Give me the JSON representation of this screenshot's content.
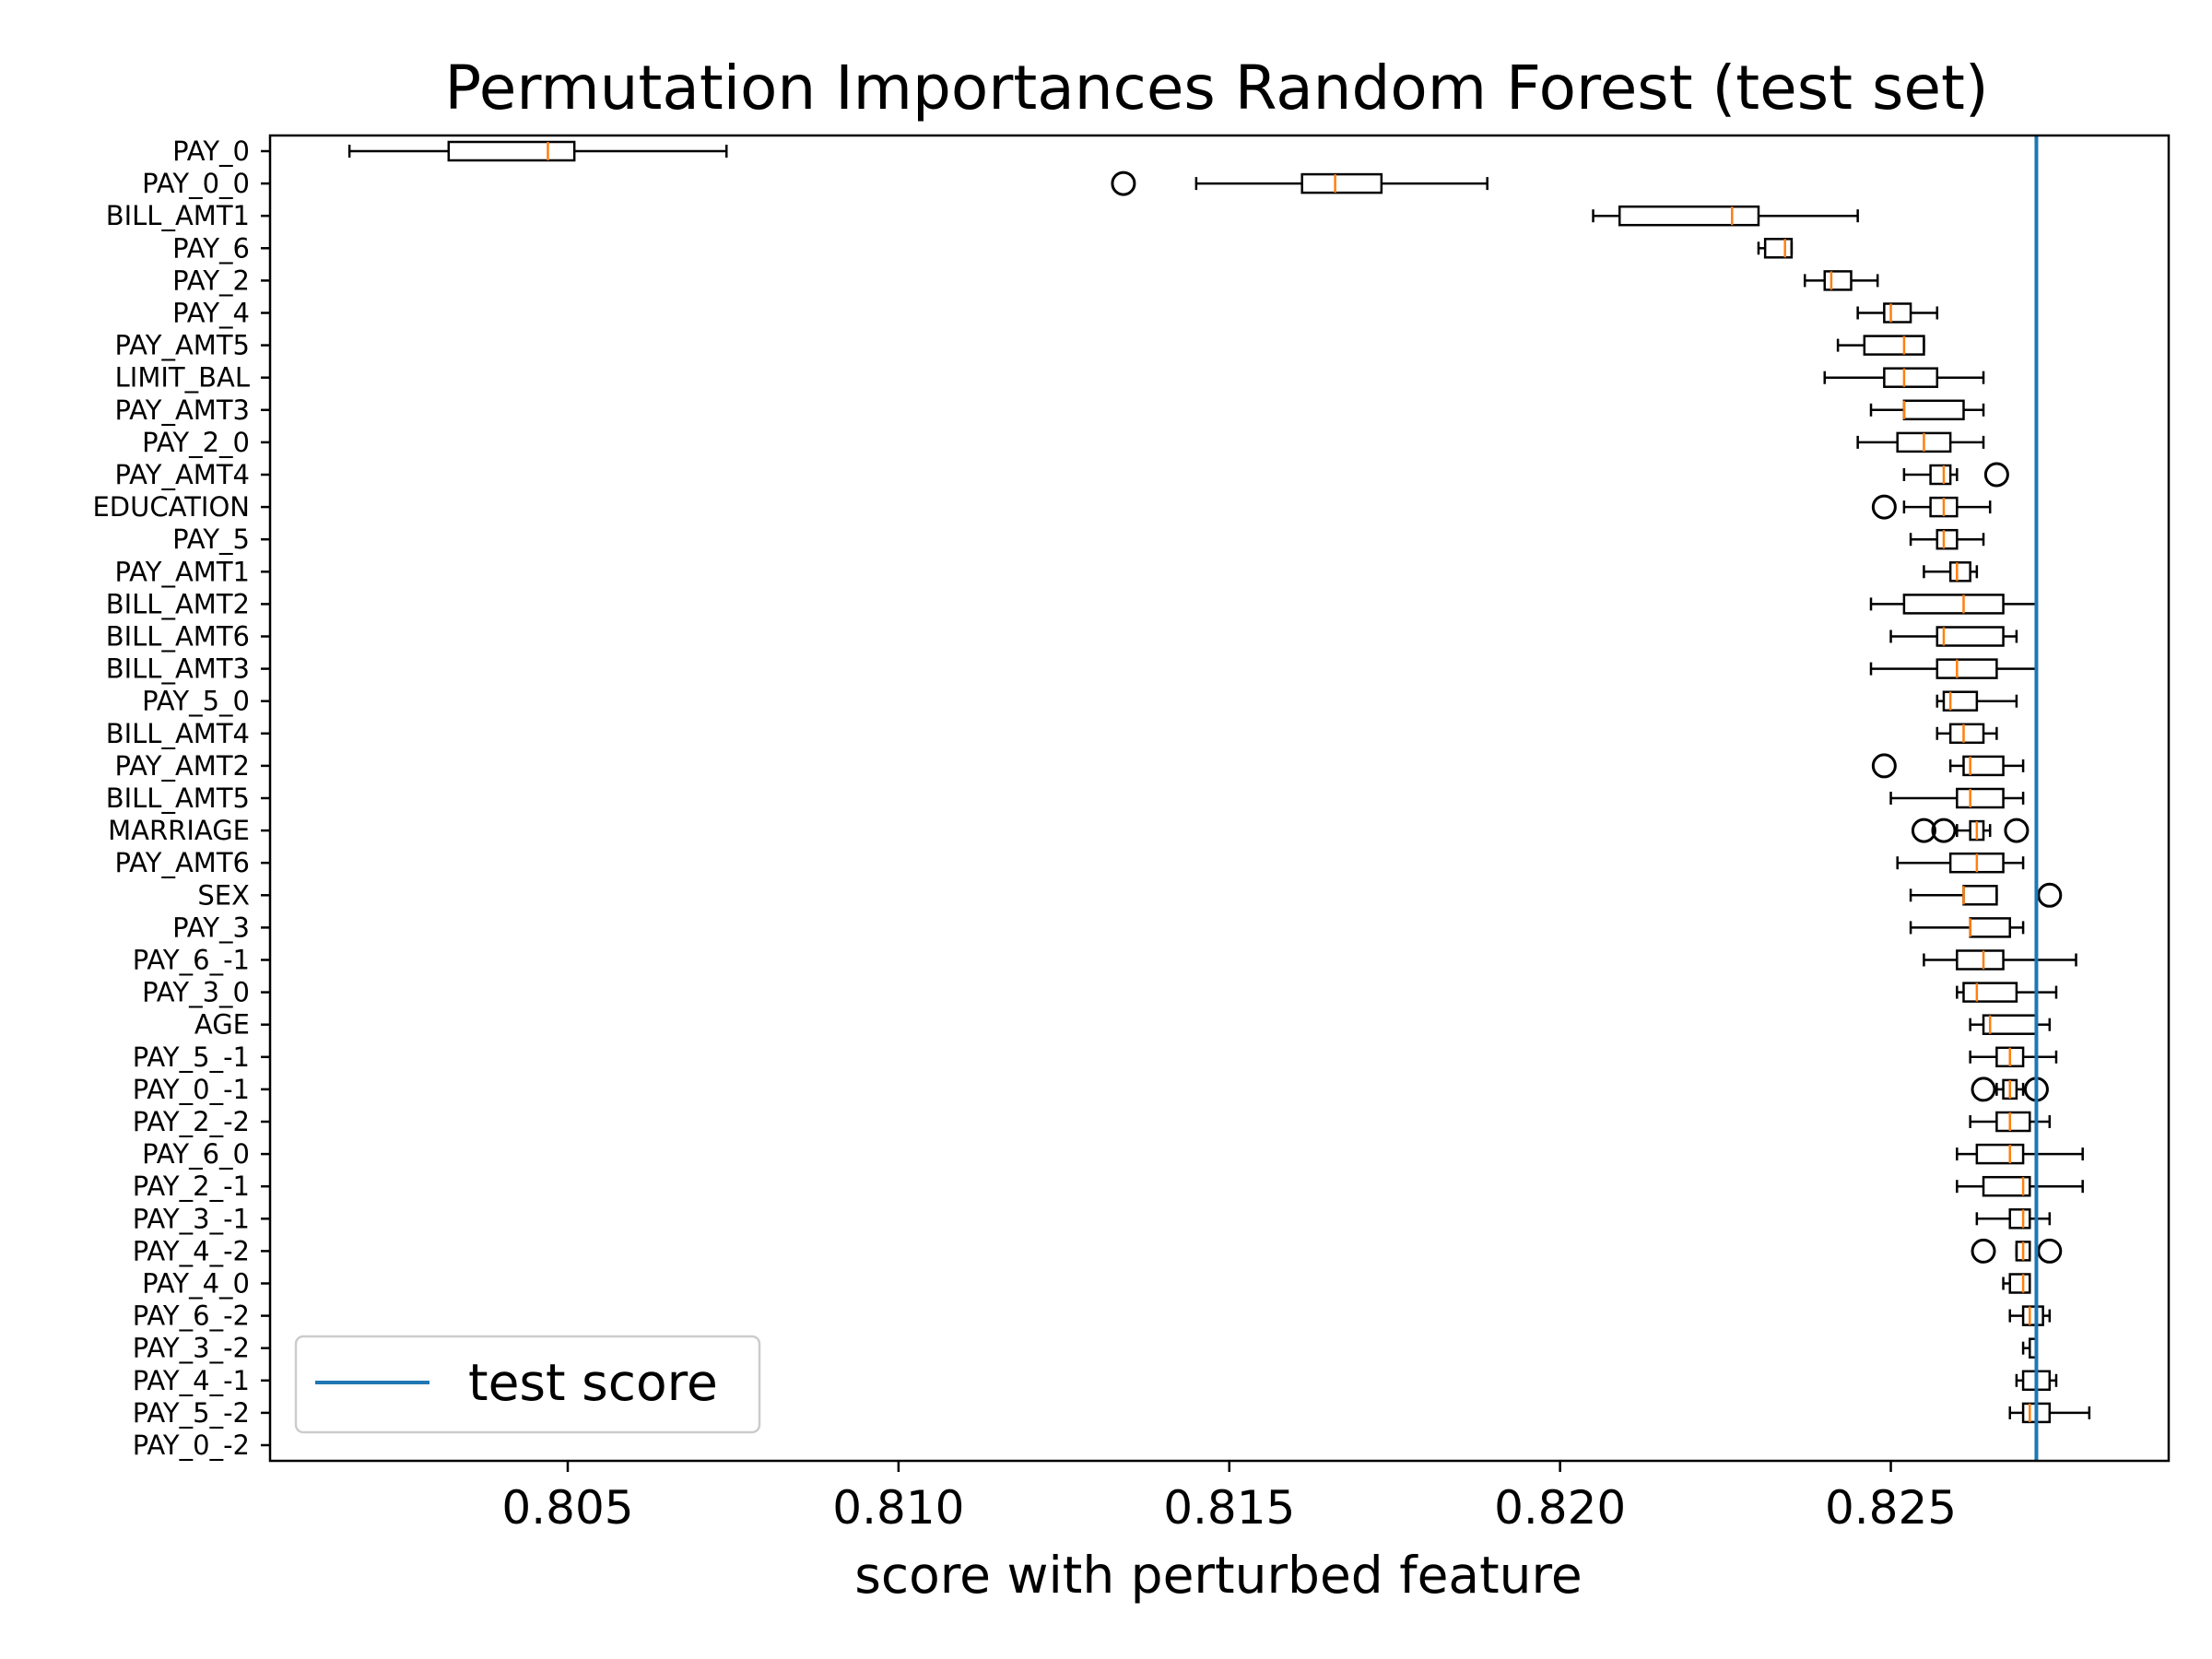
{
  "chart_data": {
    "type": "boxplot",
    "title": "Permutation Importances Random Forest (test set)",
    "xlabel": "score with perturbed feature",
    "ylabel": "",
    "xlim": [
      0.8005,
      0.8292
    ],
    "xticks": [
      "0.805",
      "0.810",
      "0.815",
      "0.820",
      "0.825"
    ],
    "grid": false,
    "legend": {
      "label": "test score",
      "location": "lower-left"
    },
    "reference_line": {
      "label": "test score",
      "value": 0.8272,
      "color": "#1f77b4"
    },
    "colors": {
      "box": "#000000",
      "median": "#ff7f0e",
      "line": "#1f77b4"
    },
    "features": [
      {
        "name": "PAY_0",
        "whislo": 0.8017,
        "q1": 0.8032,
        "med": 0.8047,
        "q3": 0.8051,
        "whishi": 0.8074,
        "fliers": []
      },
      {
        "name": "PAY_0_0",
        "whislo": 0.8145,
        "q1": 0.8161,
        "med": 0.8166,
        "q3": 0.8173,
        "whishi": 0.8189,
        "fliers": [
          0.8134
        ]
      },
      {
        "name": "BILL_AMT1",
        "whislo": 0.8205,
        "q1": 0.8209,
        "med": 0.8226,
        "q3": 0.823,
        "whishi": 0.8245,
        "fliers": []
      },
      {
        "name": "PAY_6",
        "whislo": 0.823,
        "q1": 0.8231,
        "med": 0.8234,
        "q3": 0.8235,
        "whishi": 0.8235,
        "fliers": []
      },
      {
        "name": "PAY_2",
        "whislo": 0.8237,
        "q1": 0.824,
        "med": 0.8241,
        "q3": 0.8244,
        "whishi": 0.8248,
        "fliers": []
      },
      {
        "name": "PAY_4",
        "whislo": 0.8245,
        "q1": 0.8249,
        "med": 0.825,
        "q3": 0.8253,
        "whishi": 0.8257,
        "fliers": []
      },
      {
        "name": "PAY_AMT5",
        "whislo": 0.8242,
        "q1": 0.8246,
        "med": 0.8252,
        "q3": 0.8255,
        "whishi": 0.8255,
        "fliers": []
      },
      {
        "name": "LIMIT_BAL",
        "whislo": 0.824,
        "q1": 0.8249,
        "med": 0.8252,
        "q3": 0.8257,
        "whishi": 0.8264,
        "fliers": []
      },
      {
        "name": "PAY_AMT3",
        "whislo": 0.8247,
        "q1": 0.8252,
        "med": 0.8252,
        "q3": 0.8261,
        "whishi": 0.8264,
        "fliers": []
      },
      {
        "name": "PAY_2_0",
        "whislo": 0.8245,
        "q1": 0.8251,
        "med": 0.8255,
        "q3": 0.8259,
        "whishi": 0.8264,
        "fliers": []
      },
      {
        "name": "PAY_AMT4",
        "whislo": 0.8252,
        "q1": 0.8256,
        "med": 0.8258,
        "q3": 0.8259,
        "whishi": 0.826,
        "fliers": [
          0.8266
        ]
      },
      {
        "name": "EDUCATION",
        "whislo": 0.8252,
        "q1": 0.8256,
        "med": 0.8258,
        "q3": 0.826,
        "whishi": 0.8265,
        "fliers": [
          0.8249
        ]
      },
      {
        "name": "PAY_5",
        "whislo": 0.8253,
        "q1": 0.8257,
        "med": 0.8258,
        "q3": 0.826,
        "whishi": 0.8264,
        "fliers": []
      },
      {
        "name": "PAY_AMT1",
        "whislo": 0.8255,
        "q1": 0.8259,
        "med": 0.826,
        "q3": 0.8262,
        "whishi": 0.8263,
        "fliers": []
      },
      {
        "name": "BILL_AMT2",
        "whislo": 0.8247,
        "q1": 0.8252,
        "med": 0.8261,
        "q3": 0.8267,
        "whishi": 0.8272,
        "fliers": []
      },
      {
        "name": "BILL_AMT6",
        "whislo": 0.825,
        "q1": 0.8257,
        "med": 0.8258,
        "q3": 0.8267,
        "whishi": 0.8269,
        "fliers": []
      },
      {
        "name": "BILL_AMT3",
        "whislo": 0.8247,
        "q1": 0.8257,
        "med": 0.826,
        "q3": 0.8266,
        "whishi": 0.8272,
        "fliers": []
      },
      {
        "name": "PAY_5_0",
        "whislo": 0.8257,
        "q1": 0.8258,
        "med": 0.8259,
        "q3": 0.8263,
        "whishi": 0.8269,
        "fliers": []
      },
      {
        "name": "BILL_AMT4",
        "whislo": 0.8257,
        "q1": 0.8259,
        "med": 0.8261,
        "q3": 0.8264,
        "whishi": 0.8266,
        "fliers": []
      },
      {
        "name": "PAY_AMT2",
        "whislo": 0.8259,
        "q1": 0.8261,
        "med": 0.8262,
        "q3": 0.8267,
        "whishi": 0.827,
        "fliers": [
          0.8249
        ]
      },
      {
        "name": "BILL_AMT5",
        "whislo": 0.825,
        "q1": 0.826,
        "med": 0.8262,
        "q3": 0.8267,
        "whishi": 0.827,
        "fliers": []
      },
      {
        "name": "MARRIAGE",
        "whislo": 0.826,
        "q1": 0.8262,
        "med": 0.8263,
        "q3": 0.8264,
        "whishi": 0.8265,
        "fliers": [
          0.8255,
          0.8258,
          0.8269
        ]
      },
      {
        "name": "PAY_AMT6",
        "whislo": 0.8251,
        "q1": 0.8259,
        "med": 0.8263,
        "q3": 0.8267,
        "whishi": 0.827,
        "fliers": []
      },
      {
        "name": "SEX",
        "whislo": 0.8253,
        "q1": 0.8261,
        "med": 0.8261,
        "q3": 0.8266,
        "whishi": 0.8266,
        "fliers": [
          0.8274
        ]
      },
      {
        "name": "PAY_3",
        "whislo": 0.8253,
        "q1": 0.8262,
        "med": 0.8262,
        "q3": 0.8268,
        "whishi": 0.827,
        "fliers": []
      },
      {
        "name": "PAY_6_-1",
        "whislo": 0.8255,
        "q1": 0.826,
        "med": 0.8264,
        "q3": 0.8267,
        "whishi": 0.8278,
        "fliers": []
      },
      {
        "name": "PAY_3_0",
        "whislo": 0.826,
        "q1": 0.8261,
        "med": 0.8263,
        "q3": 0.8269,
        "whishi": 0.8275,
        "fliers": []
      },
      {
        "name": "AGE",
        "whislo": 0.8262,
        "q1": 0.8264,
        "med": 0.8265,
        "q3": 0.8272,
        "whishi": 0.8274,
        "fliers": []
      },
      {
        "name": "PAY_5_-1",
        "whislo": 0.8262,
        "q1": 0.8266,
        "med": 0.8268,
        "q3": 0.827,
        "whishi": 0.8275,
        "fliers": []
      },
      {
        "name": "PAY_0_-1",
        "whislo": 0.8266,
        "q1": 0.8267,
        "med": 0.8268,
        "q3": 0.8269,
        "whishi": 0.827,
        "fliers": [
          0.8264,
          0.8272
        ]
      },
      {
        "name": "PAY_2_-2",
        "whislo": 0.8262,
        "q1": 0.8266,
        "med": 0.8268,
        "q3": 0.8271,
        "whishi": 0.8274,
        "fliers": []
      },
      {
        "name": "PAY_6_0",
        "whislo": 0.826,
        "q1": 0.8263,
        "med": 0.8268,
        "q3": 0.827,
        "whishi": 0.8279,
        "fliers": []
      },
      {
        "name": "PAY_2_-1",
        "whislo": 0.826,
        "q1": 0.8264,
        "med": 0.827,
        "q3": 0.8271,
        "whishi": 0.8279,
        "fliers": []
      },
      {
        "name": "PAY_3_-1",
        "whislo": 0.8263,
        "q1": 0.8268,
        "med": 0.827,
        "q3": 0.8271,
        "whishi": 0.8274,
        "fliers": []
      },
      {
        "name": "PAY_4_-2",
        "whislo": 0.8269,
        "q1": 0.8269,
        "med": 0.827,
        "q3": 0.8271,
        "whishi": 0.8271,
        "fliers": [
          0.8264,
          0.8274
        ]
      },
      {
        "name": "PAY_4_0",
        "whislo": 0.8267,
        "q1": 0.8268,
        "med": 0.827,
        "q3": 0.8271,
        "whishi": 0.8271,
        "fliers": []
      },
      {
        "name": "PAY_6_-2",
        "whislo": 0.8268,
        "q1": 0.827,
        "med": 0.8271,
        "q3": 0.8273,
        "whishi": 0.8274,
        "fliers": []
      },
      {
        "name": "PAY_3_-2",
        "whislo": 0.827,
        "q1": 0.8271,
        "med": 0.8272,
        "q3": 0.8272,
        "whishi": 0.8272,
        "fliers": []
      },
      {
        "name": "PAY_4_-1",
        "whislo": 0.8269,
        "q1": 0.827,
        "med": 0.8272,
        "q3": 0.8274,
        "whishi": 0.8275,
        "fliers": []
      },
      {
        "name": "PAY_5_-2",
        "whislo": 0.8268,
        "q1": 0.827,
        "med": 0.8271,
        "q3": 0.8274,
        "whishi": 0.828,
        "fliers": []
      },
      {
        "name": "PAY_0_-2",
        "whislo": 0.8272,
        "q1": 0.8272,
        "med": 0.8272,
        "q3": 0.8272,
        "whishi": 0.8272,
        "fliers": []
      }
    ]
  }
}
